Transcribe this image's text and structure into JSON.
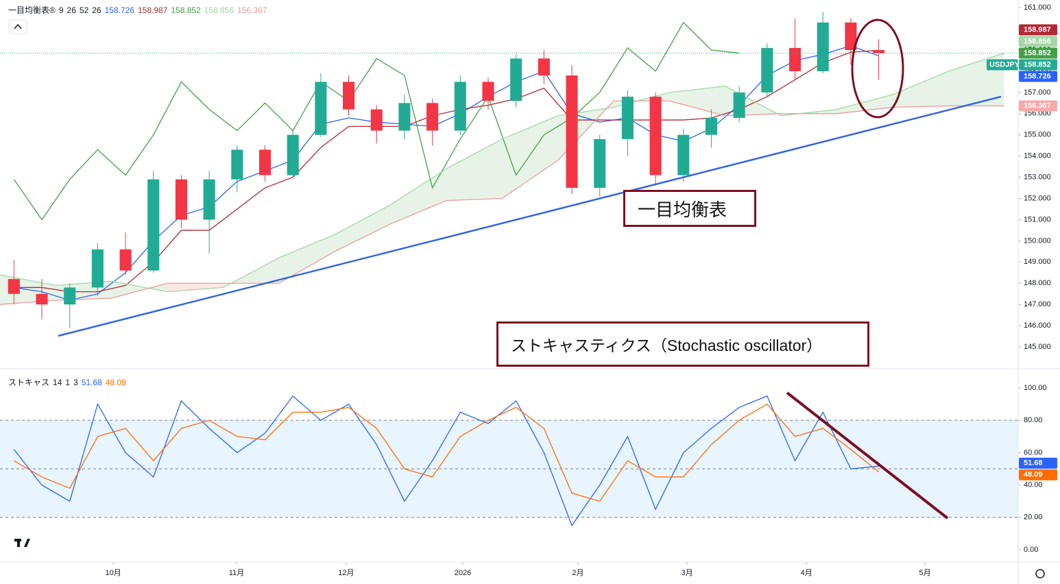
{
  "chart_data": [
    {
      "type": "candlestick",
      "indicator": "一目均衡表®",
      "params": [
        9,
        26,
        52,
        26
      ],
      "symbol": "USDJPY",
      "annotation": "一目均衡表",
      "xlim": [
        0,
        36.5
      ],
      "ylim": [
        144,
        161.36
      ],
      "yticks": [
        {
          "value": 145,
          "label": "145.000"
        },
        {
          "value": 146,
          "label": "146.000"
        },
        {
          "value": 147,
          "label": "147.000"
        },
        {
          "value": 148,
          "label": "148.000"
        },
        {
          "value": 149,
          "label": "149.000"
        },
        {
          "value": 150,
          "label": "150.000"
        },
        {
          "value": 151,
          "label": "151.000"
        },
        {
          "value": 152,
          "label": "152.000"
        },
        {
          "value": 153,
          "label": "153.000"
        },
        {
          "value": 154,
          "label": "154.000"
        },
        {
          "value": 155,
          "label": "155.000"
        },
        {
          "value": 156,
          "label": "156.000"
        },
        {
          "value": 157,
          "label": "157.000"
        },
        {
          "value": 158,
          "label": "158.000"
        },
        {
          "value": 159,
          "label": "159.000"
        },
        {
          "value": 160,
          "label": "160.000"
        },
        {
          "value": 161,
          "label": "161.000"
        }
      ],
      "x": [
        0.5,
        1.5,
        2.5,
        3.5,
        4.5,
        5.5,
        6.5,
        7.5,
        8.5,
        9.5,
        10.5,
        11.5,
        12.5,
        13.5,
        14.5,
        15.5,
        16.5,
        17.5,
        18.5,
        19.5,
        20.5,
        21.5,
        22.5,
        23.5,
        24.5,
        25.5,
        26.5,
        27.5,
        28.5,
        29.5,
        30.5,
        31.5
      ],
      "open": [
        148.2,
        147.5,
        147.0,
        147.8,
        149.6,
        148.6,
        152.9,
        151.0,
        152.9,
        154.3,
        153.1,
        155.0,
        157.5,
        156.2,
        155.2,
        156.5,
        155.2,
        157.5,
        156.6,
        158.6,
        157.8,
        152.5,
        154.8,
        156.8,
        153.1,
        155.0,
        155.8,
        157.0,
        159.1,
        158.0,
        160.3,
        159.0
      ],
      "high": [
        149.1,
        148.2,
        148.0,
        149.9,
        150.4,
        153.3,
        153.1,
        153.3,
        154.5,
        154.5,
        155.2,
        157.9,
        157.8,
        156.4,
        156.9,
        156.7,
        157.8,
        157.7,
        158.8,
        159.0,
        158.3,
        155.0,
        157.1,
        157.0,
        155.3,
        156.2,
        157.3,
        159.3,
        160.5,
        160.8,
        160.5,
        159.5
      ],
      "low": [
        147.0,
        146.3,
        145.9,
        147.4,
        148.4,
        148.5,
        150.6,
        149.4,
        152.3,
        152.8,
        153.0,
        154.9,
        155.9,
        154.6,
        154.8,
        154.5,
        155.0,
        156.2,
        156.3,
        157.4,
        152.2,
        152.1,
        154.0,
        152.6,
        152.8,
        154.4,
        155.6,
        156.8,
        157.6,
        157.9,
        158.3,
        157.6
      ],
      "close": [
        147.5,
        147.0,
        147.8,
        149.6,
        148.6,
        152.9,
        151.0,
        152.9,
        154.3,
        153.1,
        155.0,
        157.5,
        156.2,
        155.2,
        156.5,
        155.2,
        157.5,
        156.6,
        158.6,
        157.8,
        152.5,
        154.8,
        156.8,
        153.1,
        155.0,
        155.8,
        157.0,
        159.1,
        158.0,
        160.3,
        159.0,
        158.852
      ],
      "up_color": "#22ab94",
      "down_color": "#f23645",
      "grid": false,
      "cloud_colors": [
        "rgba(67,160,71,0.13)",
        "rgba(244,67,54,0.13)"
      ],
      "series": [
        {
          "color": "#2962ff",
          "values": [
            147.8,
            147.6,
            147.2,
            147.5,
            148.5,
            150.0,
            151.2,
            151.6,
            152.8,
            153.3,
            153.8,
            155.5,
            155.8,
            155.6,
            155.5,
            155.4,
            156.0,
            156.8,
            157.5,
            158.0,
            156.0,
            155.6,
            155.8,
            155.0,
            154.7,
            155.3,
            156.4,
            157.8,
            158.5,
            158.8,
            159.2,
            158.726
          ]
        },
        {
          "color": "#b22833",
          "values": [
            147.8,
            147.8,
            147.6,
            147.6,
            147.9,
            149.0,
            150.5,
            150.5,
            151.5,
            152.5,
            153.0,
            154.4,
            155.4,
            155.4,
            155.4,
            155.9,
            156.2,
            156.4,
            156.7,
            157.2,
            155.7,
            155.7,
            155.7,
            155.7,
            155.7,
            155.8,
            156.2,
            156.8,
            157.6,
            158.4,
            158.9,
            158.987
          ]
        },
        {
          "color": "#43a047",
          "x": [
            0.5,
            1.5,
            2.5,
            3.5,
            4.5,
            5.5,
            6.5,
            7.5,
            8.5,
            9.5,
            10.5,
            11.5,
            12.5,
            13.5,
            14.5,
            15.5,
            16.5,
            17.5,
            18.5,
            19.5,
            20.5,
            21.5,
            22.5,
            23.5,
            24.5,
            25.5,
            26.5
          ],
          "values": [
            152.9,
            151.0,
            152.9,
            154.3,
            153.1,
            155.0,
            157.5,
            156.2,
            155.2,
            156.5,
            155.2,
            157.5,
            156.6,
            158.6,
            157.8,
            152.5,
            154.8,
            156.8,
            153.1,
            155.0,
            155.8,
            157.0,
            159.1,
            158.0,
            160.3,
            159.0,
            158.852
          ]
        },
        {
          "color": "#a5d6a7",
          "x": [
            0,
            2,
            4,
            6,
            8,
            10,
            12,
            14,
            16,
            18,
            20,
            22,
            24,
            26,
            28,
            30,
            32,
            34,
            36
          ],
          "values": [
            148.4,
            147.9,
            148.1,
            147.6,
            147.8,
            149.2,
            150.3,
            151.7,
            153.4,
            154.8,
            155.9,
            156.3,
            157.0,
            157.3,
            155.9,
            156.2,
            156.9,
            158.0,
            158.856
          ]
        },
        {
          "color": "#ef9a9a",
          "x": [
            0,
            2,
            4,
            6,
            8,
            10,
            12,
            14,
            16,
            18,
            20,
            22,
            24,
            26,
            28,
            30,
            32,
            34,
            36
          ],
          "values": [
            147.0,
            147.2,
            147.3,
            148.0,
            148.0,
            148.0,
            149.5,
            150.8,
            151.9,
            152.0,
            153.8,
            156.6,
            156.6,
            155.9,
            156.0,
            156.0,
            156.3,
            156.367,
            156.367
          ]
        }
      ]
    },
    {
      "type": "line",
      "indicator": "ストキャス",
      "params": [
        14,
        1,
        3
      ],
      "annotation": "ストキャスティクス（Stochastic oscillator）",
      "xlim": [
        0,
        36.5
      ],
      "ylim": [
        -7.6,
        111
      ],
      "yticks": [
        {
          "value": 0,
          "label": "0.00"
        },
        {
          "value": 20,
          "label": "20.00"
        },
        {
          "value": 40,
          "label": "40.00"
        },
        {
          "value": 60,
          "label": "60.00"
        },
        {
          "value": 80,
          "label": "80.00"
        },
        {
          "value": 100,
          "label": "100.00"
        }
      ],
      "levels": [
        80,
        50,
        20
      ],
      "band_color": "rgba(33,150,243,0.1)",
      "x": [
        0.5,
        1.5,
        2.5,
        3.5,
        4.5,
        5.5,
        6.5,
        7.5,
        8.5,
        9.5,
        10.5,
        11.5,
        12.5,
        13.5,
        14.5,
        15.5,
        16.5,
        17.5,
        18.5,
        19.5,
        20.5,
        21.5,
        22.5,
        23.5,
        24.5,
        25.5,
        26.5,
        27.5,
        28.5,
        29.5,
        30.5,
        31.5
      ],
      "series": [
        {
          "color": "#2962ff",
          "values": [
            62,
            40,
            30,
            90,
            60,
            45,
            92,
            75,
            60,
            72,
            95,
            80,
            90,
            65,
            30,
            55,
            85,
            78,
            92,
            60,
            15,
            40,
            70,
            25,
            60,
            75,
            88,
            95,
            55,
            85,
            50,
            51.68
          ]
        },
        {
          "color": "#ff6d00",
          "values": [
            55,
            45,
            38,
            70,
            75,
            55,
            75,
            80,
            70,
            68,
            85,
            85,
            88,
            75,
            50,
            45,
            70,
            80,
            88,
            75,
            35,
            30,
            55,
            45,
            45,
            65,
            80,
            90,
            70,
            75,
            62,
            48.09
          ]
        }
      ],
      "xticks": [
        {
          "value": 4.06,
          "label": "10月"
        },
        {
          "value": 8.48,
          "label": "11月"
        },
        {
          "value": 12.41,
          "label": "12月"
        },
        {
          "value": 16.59,
          "label": "2026"
        },
        {
          "value": 20.72,
          "label": "2月"
        },
        {
          "value": 24.63,
          "label": "3月"
        },
        {
          "value": 28.91,
          "label": "4月"
        },
        {
          "value": 33.16,
          "label": "5月"
        }
      ]
    }
  ]
}
